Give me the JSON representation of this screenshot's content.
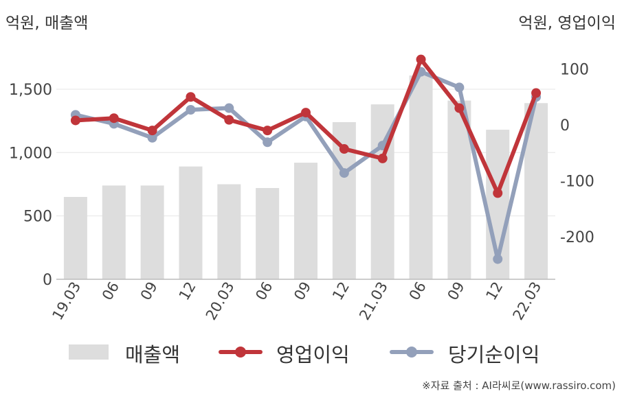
{
  "header": {
    "left_unit": "억원, 매출액",
    "right_unit": "억원, 영업이익"
  },
  "chart_data": {
    "type": "bar",
    "categories": [
      "19.03",
      "06",
      "09",
      "12",
      "20.03",
      "06",
      "09",
      "12",
      "21.03",
      "06",
      "09",
      "12",
      "22.03"
    ],
    "y_left": {
      "ticks": [
        0,
        500,
        1000,
        1500
      ],
      "tick_labels": [
        "0",
        "500",
        "1,000",
        "1,500"
      ],
      "range": [
        0,
        1800
      ]
    },
    "y_right": {
      "ticks": [
        100,
        0,
        -100,
        -200
      ],
      "tick_labels": [
        "100",
        "0",
        "-100",
        "-200"
      ],
      "range": [
        -280,
        145
      ]
    },
    "grid": true,
    "legend_position": "bottom",
    "series": [
      {
        "name": "매출액",
        "type": "bar",
        "axis": "left",
        "color": "#dddddd",
        "values": [
          650,
          740,
          740,
          890,
          750,
          720,
          920,
          1240,
          1380,
          1790,
          1410,
          1180,
          1390
        ]
      },
      {
        "name": "영업이익",
        "type": "line",
        "axis": "right",
        "color": "#c0353a",
        "values": [
          8,
          12,
          -10,
          50,
          9,
          -10,
          22,
          -43,
          -60,
          117,
          30,
          -122,
          57
        ]
      },
      {
        "name": "당기순이익",
        "type": "line",
        "axis": "right",
        "color": "#93a0ba",
        "values": [
          18,
          2,
          -23,
          27,
          30,
          -31,
          15,
          -86,
          -37,
          95,
          67,
          -240,
          50
        ]
      }
    ]
  },
  "footer": {
    "source": "※자료 출처 : AI라씨로(www.rassiro.com)"
  }
}
